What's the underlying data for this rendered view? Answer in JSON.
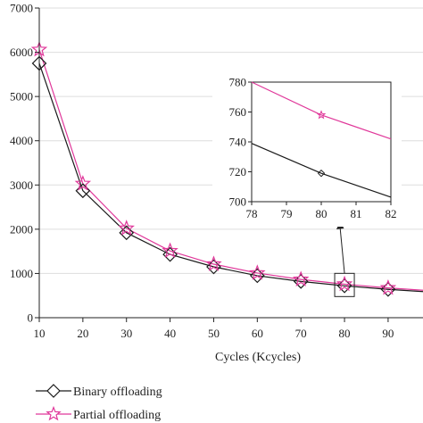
{
  "chart_data": [
    {
      "type": "line",
      "title": "",
      "xlabel": "Cycles (Kcycles)",
      "ylabel": "",
      "xlim": [
        10,
        98
      ],
      "ylim": [
        0,
        7000
      ],
      "x_ticks": [
        10,
        20,
        30,
        40,
        50,
        60,
        70,
        80,
        90
      ],
      "y_ticks": [
        0,
        1000,
        2000,
        3000,
        4000,
        5000,
        6000,
        7000
      ],
      "grid": "horizontal",
      "legend": "bottom-left",
      "series": [
        {
          "name": "Binary offloading",
          "color": "#1a1a1a",
          "marker": "diamond",
          "x": [
            10,
            20,
            30,
            40,
            50,
            60,
            70,
            80,
            90,
            98
          ],
          "y": [
            5750,
            2870,
            1920,
            1430,
            1150,
            950,
            820,
            720,
            640,
            590
          ]
        },
        {
          "name": "Partial offloading",
          "color": "#e0389a",
          "marker": "star",
          "x": [
            10,
            20,
            30,
            40,
            50,
            60,
            70,
            80,
            90,
            98
          ],
          "y": [
            6060,
            3030,
            2020,
            1510,
            1210,
            1010,
            865,
            758,
            673,
            620
          ]
        }
      ],
      "annotation": {
        "box_center": [
          80,
          740
        ],
        "arrow": "to-inset"
      }
    },
    {
      "type": "line",
      "title": "",
      "xlabel": "",
      "ylabel": "",
      "xlim": [
        78,
        82
      ],
      "ylim": [
        700,
        780
      ],
      "x_ticks": [
        78,
        79,
        80,
        81,
        82
      ],
      "y_ticks": [
        700,
        720,
        740,
        760,
        780
      ],
      "series": [
        {
          "name": "Binary offloading",
          "color": "#1a1a1a",
          "x": [
            78,
            80,
            82
          ],
          "y": [
            739,
            719,
            703
          ],
          "marker_at": 80
        },
        {
          "name": "Partial offloading",
          "color": "#e0389a",
          "x": [
            78,
            80,
            82
          ],
          "y": [
            780,
            758,
            742
          ],
          "marker_at": 80
        }
      ]
    }
  ]
}
